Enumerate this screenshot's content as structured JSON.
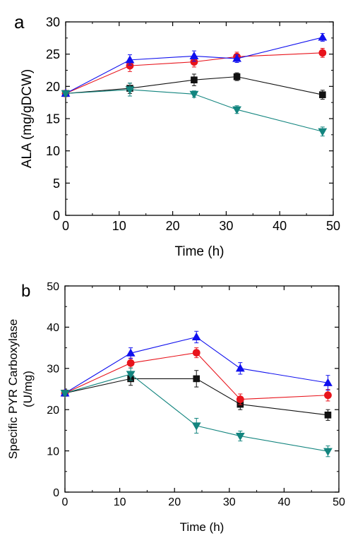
{
  "colors": {
    "black": "#111111",
    "red": "#e8141c",
    "blue": "#1010ee",
    "teal": "#13857f"
  },
  "chart_data": [
    {
      "panel_label": "a",
      "type": "line",
      "xlabel": "Time (h)",
      "ylabel": "ALA (mg/gDCW)",
      "xlim": [
        0,
        50
      ],
      "ylim": [
        0,
        30
      ],
      "x_ticks": [
        "0",
        "10",
        "20",
        "30",
        "40",
        "50"
      ],
      "y_ticks": [
        "0",
        "5",
        "10",
        "15",
        "20",
        "25",
        "30"
      ],
      "grid": false,
      "legend": "none",
      "x": [
        0,
        12,
        24,
        32,
        48
      ],
      "series": [
        {
          "marker": "square",
          "color": "#111111",
          "values": [
            18.9,
            19.7,
            21.0,
            21.5,
            18.7
          ],
          "errors": [
            0.3,
            0.8,
            0.9,
            0.6,
            0.7
          ]
        },
        {
          "marker": "circle",
          "color": "#e8141c",
          "values": [
            18.9,
            23.2,
            23.8,
            24.6,
            25.2
          ],
          "errors": [
            0.3,
            0.9,
            0.8,
            0.7,
            0.7
          ]
        },
        {
          "marker": "triangle-up",
          "color": "#1010ee",
          "values": [
            18.9,
            24.1,
            24.7,
            24.3,
            27.6
          ],
          "errors": [
            0.3,
            0.8,
            0.8,
            0.6,
            0.6
          ]
        },
        {
          "marker": "triangle-down",
          "color": "#13857f",
          "values": [
            18.9,
            19.5,
            18.8,
            16.4,
            13.0
          ],
          "errors": [
            0.3,
            1.0,
            0.5,
            0.6,
            0.7
          ]
        }
      ]
    },
    {
      "panel_label": "b",
      "type": "line",
      "xlabel": "Time (h)",
      "ylabel_lines": [
        "Specific PYR Carboxylase",
        "(U/mg)"
      ],
      "xlim": [
        0,
        50
      ],
      "ylim": [
        0,
        50
      ],
      "x_ticks": [
        "0",
        "10",
        "20",
        "30",
        "40",
        "50"
      ],
      "y_ticks": [
        "0",
        "10",
        "20",
        "30",
        "40",
        "50"
      ],
      "grid": false,
      "legend": "none",
      "x": [
        0,
        12,
        24,
        32,
        48
      ],
      "series": [
        {
          "marker": "square",
          "color": "#111111",
          "values": [
            24.0,
            27.5,
            27.5,
            21.3,
            18.7
          ],
          "errors": [
            0.5,
            1.6,
            2.0,
            1.3,
            1.3
          ]
        },
        {
          "marker": "circle",
          "color": "#e8141c",
          "values": [
            24.0,
            31.3,
            33.8,
            22.5,
            23.5
          ],
          "errors": [
            0.5,
            1.2,
            1.2,
            1.3,
            1.4
          ]
        },
        {
          "marker": "triangle-up",
          "color": "#1010ee",
          "values": [
            24.0,
            33.7,
            37.6,
            30.0,
            26.5
          ],
          "errors": [
            0.5,
            1.3,
            1.4,
            1.4,
            1.8
          ]
        },
        {
          "marker": "triangle-down",
          "color": "#13857f",
          "values": [
            24.0,
            28.6,
            16.1,
            13.6,
            9.9
          ],
          "errors": [
            0.5,
            1.5,
            1.8,
            1.2,
            1.3
          ]
        }
      ]
    }
  ]
}
